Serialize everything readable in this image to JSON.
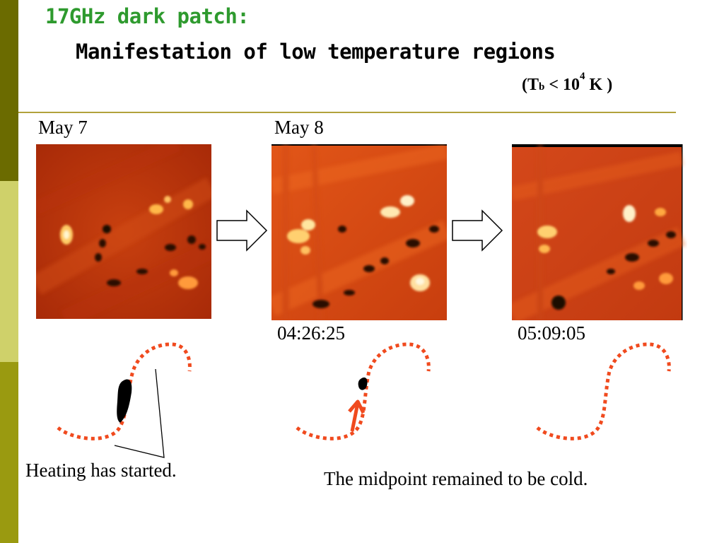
{
  "slide": {
    "title_line1": "17GHz dark patch:",
    "title_line2": "Manifestation of low temperature regions",
    "temperature_note": {
      "open": "(T",
      "subscript": "b",
      "relation": " < 10",
      "superscript": "4",
      "unit": " K  )"
    }
  },
  "panels": [
    {
      "date_label": "May 7",
      "time_label": ""
    },
    {
      "date_label": "May 8",
      "time_label": "04:26:25"
    },
    {
      "date_label": "",
      "time_label": "05:09:05"
    }
  ],
  "captions": {
    "left": "Heating has started.",
    "right": "The midpoint remained to be cold."
  },
  "colors": {
    "title_green": "#2e9a2e",
    "rule": "#b2a23c",
    "loop_dots": "#f04a1e",
    "radio_map_base": "#c0380c",
    "sidebar_dark": "#6b6b00",
    "sidebar_light": "#cfd16a",
    "sidebar_mid": "#9a9a10"
  }
}
